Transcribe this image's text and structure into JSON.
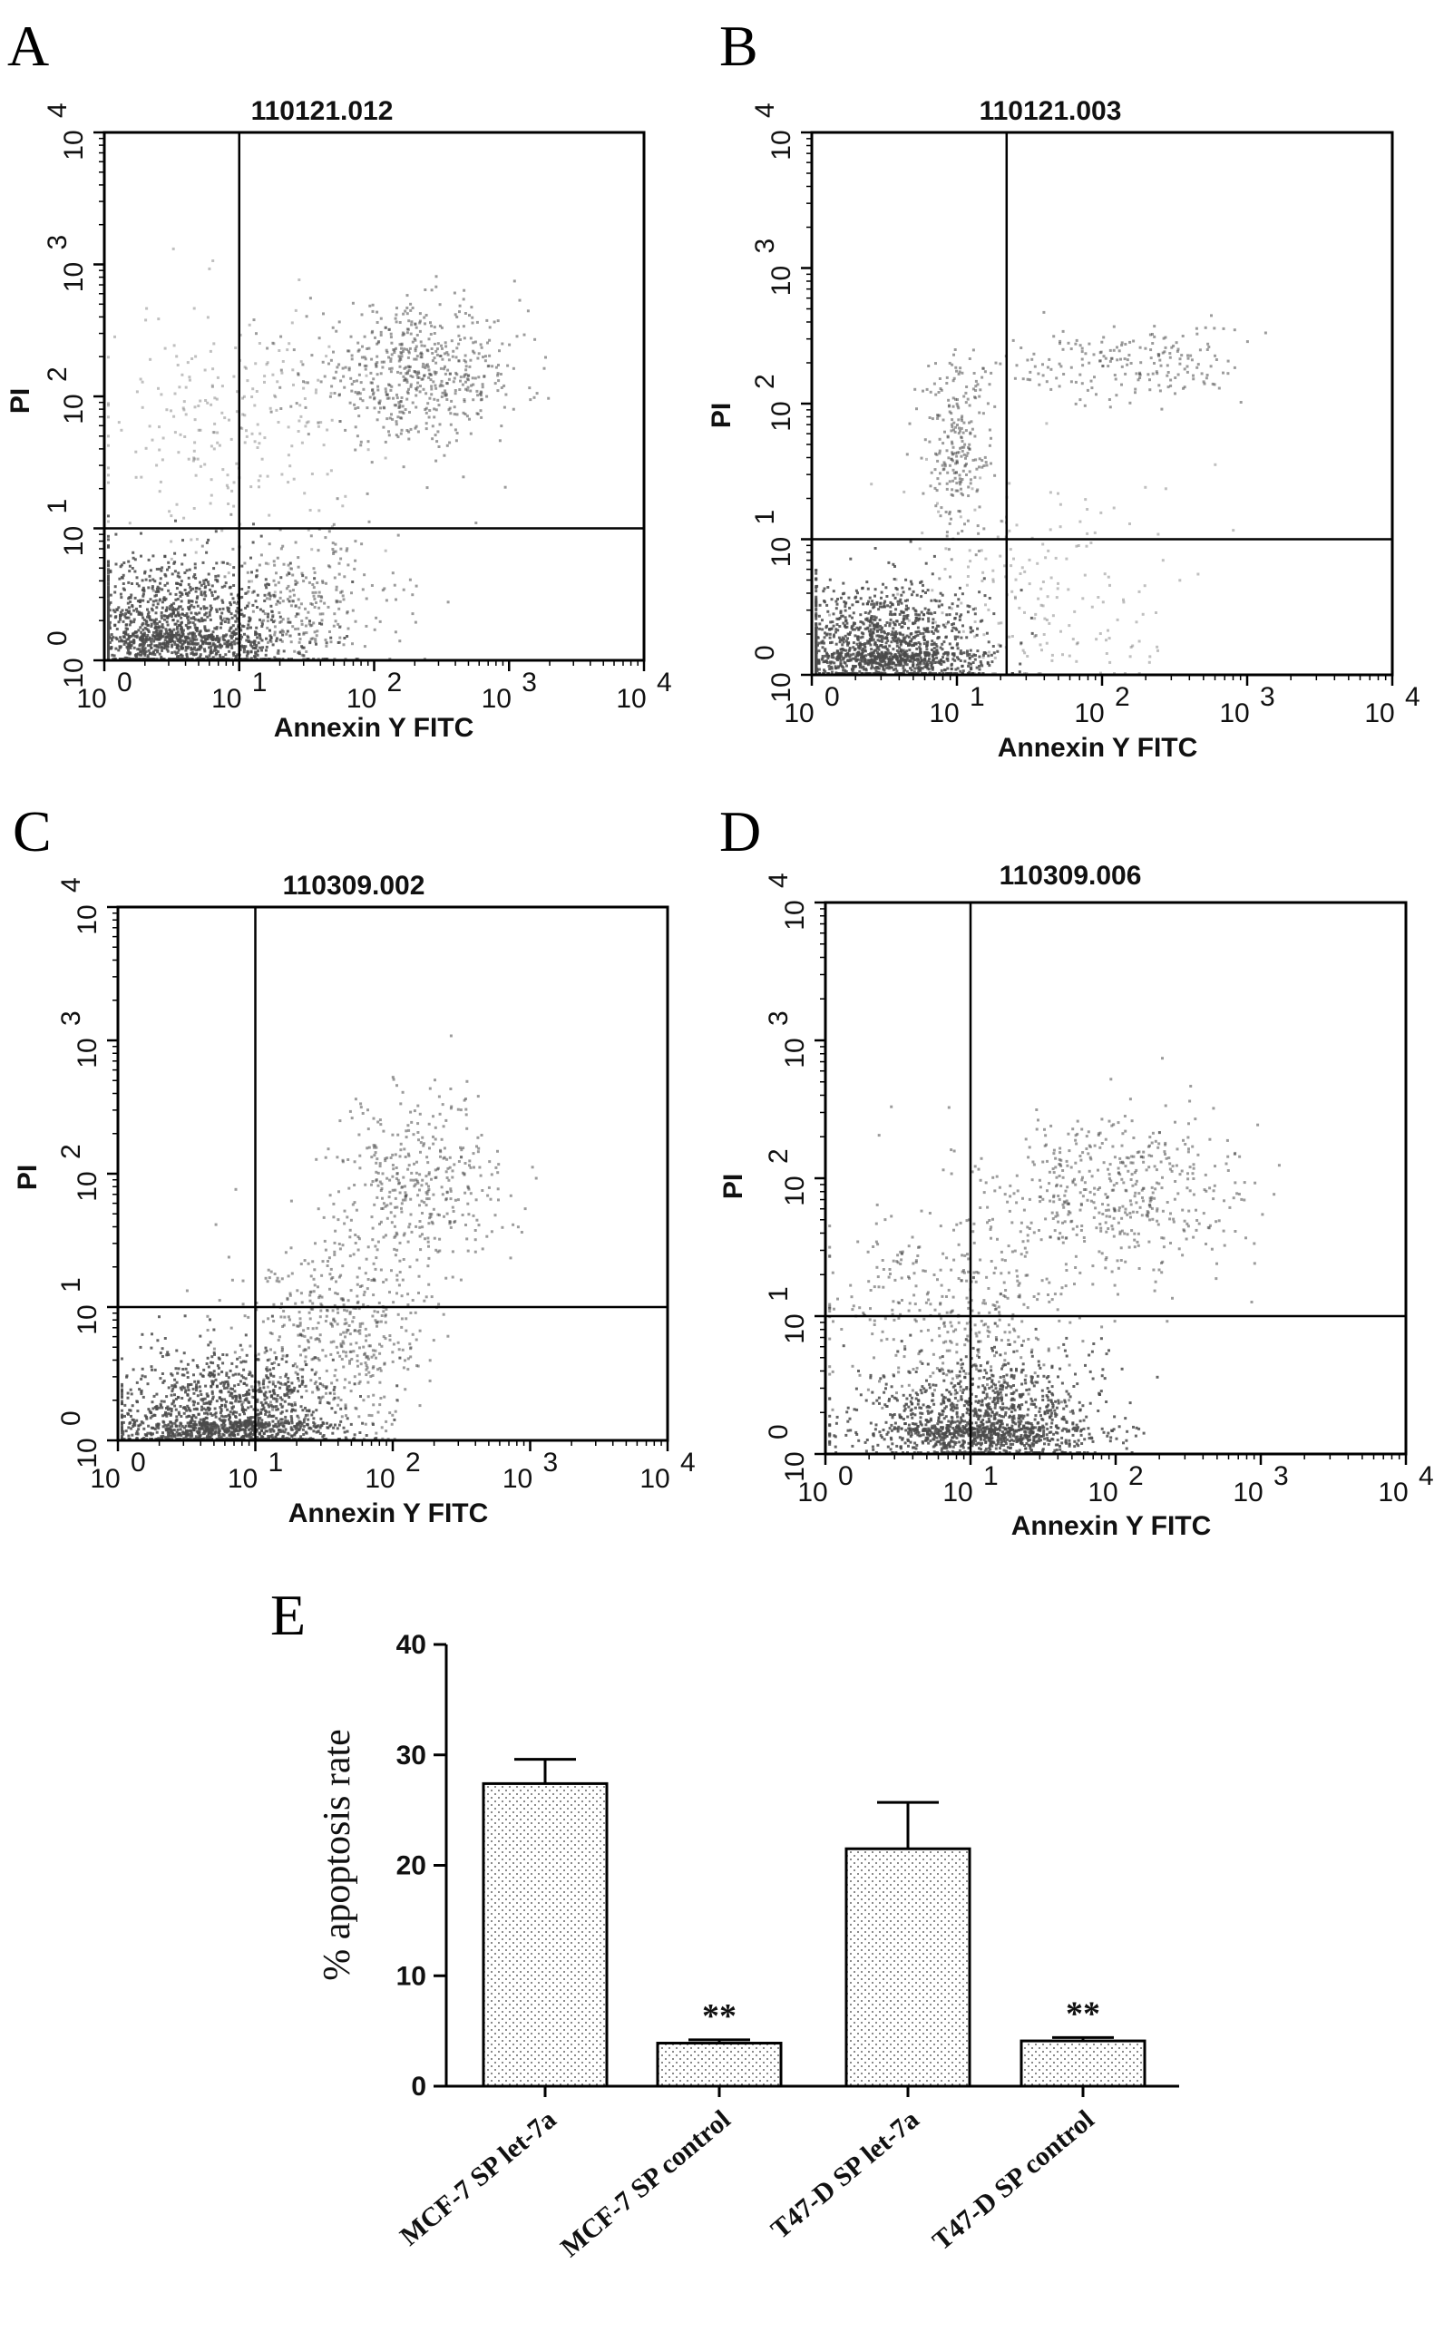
{
  "chart_data": [
    {
      "panel": "A",
      "type": "scatter",
      "title": "110121.012",
      "xlabel": "Annexin Y FITC",
      "ylabel": "PI",
      "xscale": "log",
      "yscale": "log",
      "xlim": [
        1,
        10000
      ],
      "ylim": [
        1,
        10000
      ],
      "quadrant_gate": {
        "x": 10,
        "y": 10
      },
      "clusters": [
        {
          "cx": 3,
          "cy": 1.6,
          "sx": 0.45,
          "sy": 0.3,
          "n": 1500,
          "density": "dense"
        },
        {
          "cx": 30,
          "cy": 2.5,
          "sx": 0.35,
          "sy": 0.3,
          "n": 300,
          "density": "medium"
        },
        {
          "cx": 200,
          "cy": 150,
          "sx": 0.4,
          "sy": 0.25,
          "n": 600,
          "density": "medium"
        },
        {
          "cx": 8,
          "cy": 60,
          "sx": 0.45,
          "sy": 0.45,
          "n": 250,
          "density": "sparse"
        }
      ]
    },
    {
      "panel": "B",
      "type": "scatter",
      "title": "110121.003",
      "xlabel": "Annexin Y FITC",
      "ylabel": "PI",
      "xscale": "log",
      "yscale": "log",
      "xlim": [
        1,
        10000
      ],
      "ylim": [
        1,
        10000
      ],
      "quadrant_gate": {
        "x": 22,
        "y": 10
      },
      "clusters": [
        {
          "cx": 3,
          "cy": 1.5,
          "sx": 0.35,
          "sy": 0.25,
          "n": 1400,
          "density": "dense"
        },
        {
          "cx": 10,
          "cy": 50,
          "sx": 0.12,
          "sy": 0.35,
          "n": 250,
          "density": "medium"
        },
        {
          "cx": 150,
          "cy": 200,
          "sx": 0.4,
          "sy": 0.15,
          "n": 200,
          "density": "medium"
        },
        {
          "cx": 40,
          "cy": 4,
          "sx": 0.5,
          "sy": 0.45,
          "n": 200,
          "density": "sparse"
        }
      ]
    },
    {
      "panel": "C",
      "type": "scatter",
      "title": "110309.002",
      "xlabel": "Annexin Y FITC",
      "ylabel": "PI",
      "xscale": "log",
      "yscale": "log",
      "xlim": [
        1,
        10000
      ],
      "ylim": [
        1,
        10000
      ],
      "quadrant_gate": {
        "x": 10,
        "y": 10
      },
      "clusters": [
        {
          "cx": 6,
          "cy": 1.4,
          "sx": 0.4,
          "sy": 0.25,
          "n": 1400,
          "density": "dense"
        },
        {
          "cx": 40,
          "cy": 6,
          "sx": 0.35,
          "sy": 0.35,
          "n": 500,
          "density": "medium"
        },
        {
          "cx": 150,
          "cy": 80,
          "sx": 0.3,
          "sy": 0.35,
          "n": 400,
          "density": "medium"
        }
      ]
    },
    {
      "panel": "D",
      "type": "scatter",
      "title": "110309.006",
      "xlabel": "Annexin Y FITC",
      "ylabel": "PI",
      "xscale": "log",
      "yscale": "log",
      "xlim": [
        1,
        10000
      ],
      "ylim": [
        1,
        10000
      ],
      "quadrant_gate": {
        "x": 10,
        "y": 10
      },
      "clusters": [
        {
          "cx": 12,
          "cy": 1.6,
          "sx": 0.4,
          "sy": 0.25,
          "n": 1400,
          "density": "dense"
        },
        {
          "cx": 8,
          "cy": 12,
          "sx": 0.45,
          "sy": 0.35,
          "n": 400,
          "density": "medium"
        },
        {
          "cx": 100,
          "cy": 80,
          "sx": 0.45,
          "sy": 0.3,
          "n": 500,
          "density": "medium"
        }
      ]
    },
    {
      "panel": "E",
      "type": "bar",
      "categories": [
        "MCF-7 SP let-7a",
        "MCF-7 SP control",
        "T47-D SP let-7a",
        "T47-D SP control"
      ],
      "values": [
        27.4,
        3.9,
        21.5,
        4.1
      ],
      "errors": [
        2.2,
        0.3,
        4.2,
        0.3
      ],
      "significance": [
        "",
        "**",
        "",
        "**"
      ],
      "ylabel": "% apoptosis rate",
      "ylim": [
        0,
        40
      ],
      "yticks": [
        0,
        10,
        20,
        30,
        40
      ]
    }
  ],
  "colors": {
    "dots": "#4a4a4a",
    "axis": "#000000",
    "bar_fill": "#ffffff",
    "bar_pattern": "#555555"
  }
}
